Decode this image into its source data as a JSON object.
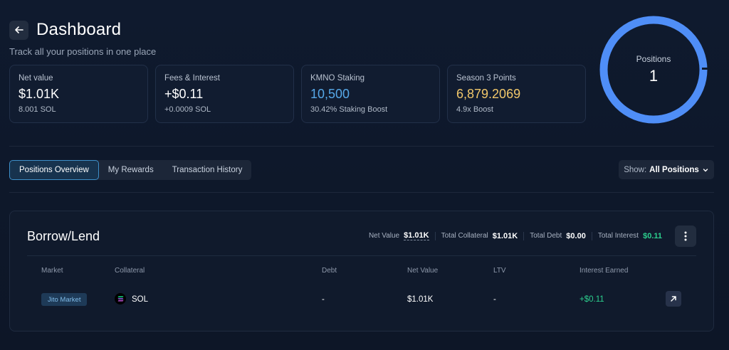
{
  "header": {
    "title": "Dashboard",
    "subtitle": "Track all your positions in one place"
  },
  "stats": [
    {
      "label": "Net value",
      "value": "$1.01K",
      "sub": "8.001 SOL"
    },
    {
      "label": "Fees & Interest",
      "value": "+$0.11",
      "sub": "+0.0009 SOL"
    },
    {
      "label": "KMNO Staking",
      "value": "10,500",
      "sub": "30.42% Staking Boost",
      "color": "#56a8e8"
    },
    {
      "label": "Season 3 Points",
      "value": "6,879.2069",
      "sub": "4.9x Boost",
      "color": "#f1c76a"
    }
  ],
  "positions_ring": {
    "label": "Positions",
    "value": "1",
    "color": "#4f8ef7"
  },
  "tabs": [
    {
      "label": "Positions Overview",
      "active": true
    },
    {
      "label": "My Rewards",
      "active": false
    },
    {
      "label": "Transaction History",
      "active": false
    }
  ],
  "show_filter": {
    "label": "Show:",
    "value": "All Positions"
  },
  "panel": {
    "title": "Borrow/Lend",
    "summary": {
      "net_value_label": "Net Value",
      "net_value": "$1.01K",
      "collateral_label": "Total Collateral",
      "collateral": "$1.01K",
      "debt_label": "Total Debt",
      "debt": "$0.00",
      "interest_label": "Total Interest",
      "interest": "$0.11"
    },
    "columns": [
      "Market",
      "Collateral",
      "Debt",
      "Net Value",
      "LTV",
      "Interest Earned"
    ],
    "row": {
      "market": "Jito Market",
      "collateral": "SOL",
      "debt": "-",
      "net_value": "$1.01K",
      "ltv": "-",
      "interest_earned": "+$0.11"
    }
  },
  "icons": {
    "back": "arrow-left-icon",
    "chevron": "chevron-down-icon",
    "more": "more-vertical-icon",
    "open": "arrow-up-right-icon",
    "token": "solana-icon"
  },
  "colors": {
    "accent_blue": "#56a8e8",
    "points_gold": "#f1c76a",
    "positive_green": "#2ccf8e"
  }
}
